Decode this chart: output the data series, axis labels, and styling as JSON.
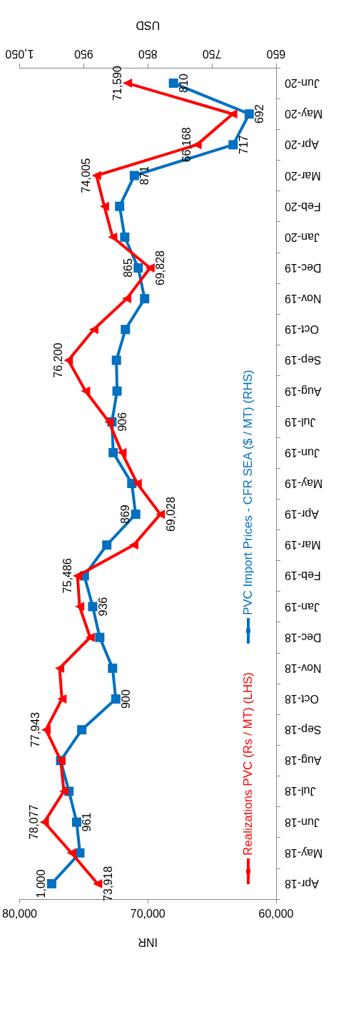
{
  "chart_data": {
    "type": "line",
    "orientation": "horizontal",
    "xlabel": "INR",
    "x2label": "USD",
    "categories": [
      "Jun-20",
      "May-20",
      "Apr-20",
      "Mar-20",
      "Feb-20",
      "Jan-20",
      "Dec-19",
      "Nov-19",
      "Oct-19",
      "Sep-19",
      "Aug-19",
      "Jul-19",
      "Jun-19",
      "May-19",
      "Apr-19",
      "Mar-19",
      "Feb-19",
      "Jan-19",
      "Dec-18",
      "Nov-18",
      "Oct-18",
      "Sep-18",
      "Aug-18",
      "Jul-18",
      "Jun-18",
      "May-18",
      "Apr-18"
    ],
    "xlim": [
      80000,
      60000
    ],
    "xticks": [
      {
        "value": 80000,
        "label": "80,000"
      },
      {
        "value": 70000,
        "label": "70,000"
      },
      {
        "value": 60000,
        "label": "60,000"
      }
    ],
    "x2lim": [
      1050,
      650
    ],
    "x2ticks": [
      {
        "value": 1050,
        "label": "1,050"
      },
      950,
      850,
      750,
      650
    ],
    "legend": "right",
    "grid": false,
    "line_style": "solid",
    "series": [
      {
        "name": "Realizations PVC (Rs / MT) (LHS)",
        "color": "#ff0000",
        "marker": "triangle",
        "values": [
          71590,
          63390,
          66168,
          74005,
          73390,
          72750,
          69828,
          71650,
          74220,
          76200,
          74860,
          73030,
          72020,
          70830,
          69028,
          71100,
          75486,
          75320,
          74500,
          76880,
          76700,
          77943,
          76790,
          76550,
          78077,
          75960,
          73918
        ],
        "value_labels": [
          "71,590",
          null,
          "66,168",
          "74,005",
          null,
          null,
          "69,828",
          null,
          null,
          "76,200",
          null,
          null,
          null,
          null,
          "69,028",
          null,
          "75,486",
          null,
          null,
          null,
          null,
          "77,943",
          null,
          null,
          "78,077",
          null,
          "73,918"
        ]
      },
      {
        "name": "PVC Import Prices - CFR SEA ($ / MT) (RHS)",
        "color": "#0070c0",
        "marker": "square",
        "axis": "x2",
        "values": [
          810,
          692,
          717,
          871,
          894,
          886,
          865,
          855,
          885,
          899,
          898,
          906,
          904,
          875,
          869,
          914,
          949,
          936,
          925,
          905,
          900,
          953,
          986,
          973,
          961,
          956,
          1000
        ],
        "value_labels": [
          "810",
          "692",
          "717",
          "871",
          null,
          null,
          "865",
          null,
          null,
          null,
          null,
          "906",
          null,
          null,
          "869",
          null,
          null,
          "936",
          null,
          null,
          "900",
          null,
          null,
          null,
          "961",
          null,
          "1,000"
        ]
      }
    ]
  }
}
